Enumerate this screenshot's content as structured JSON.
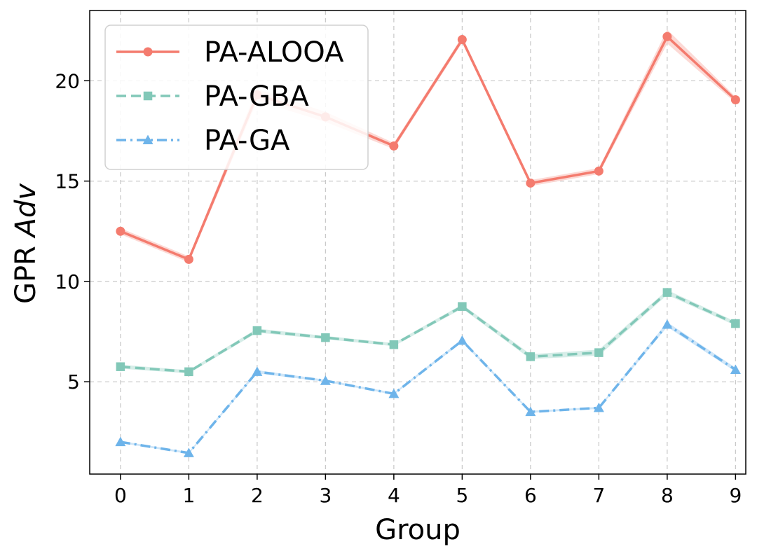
{
  "chart_data": {
    "type": "line",
    "title": "",
    "xlabel": "Group",
    "ylabel_prefix": "GPR ",
    "ylabel_italic": "Adv",
    "x": [
      0,
      1,
      2,
      3,
      4,
      5,
      6,
      7,
      8,
      9
    ],
    "x_tick_labels": [
      "0",
      "1",
      "2",
      "3",
      "4",
      "5",
      "6",
      "7",
      "8",
      "9"
    ],
    "xlim": [
      -0.45,
      9.15
    ],
    "ylim": [
      0.4,
      23.5
    ],
    "y_ticks": [
      5,
      10,
      15,
      20
    ],
    "y_tick_labels": [
      "5",
      "10",
      "15",
      "20"
    ],
    "grid": true,
    "legend_position": "upper-left",
    "series": [
      {
        "name": "PA-ALOOA",
        "color": "#f47b6e",
        "band_color": "#fbd0ca",
        "marker": "circle",
        "linestyle": "solid",
        "values": [
          12.5,
          11.1,
          19.3,
          18.2,
          16.75,
          22.05,
          14.9,
          15.5,
          22.2,
          19.05
        ],
        "band": [
          0.15,
          0.15,
          0.3,
          0.25,
          0.15,
          0.15,
          0.15,
          0.15,
          0.35,
          0.15
        ]
      },
      {
        "name": "PA-GBA",
        "color": "#82c8b8",
        "band_color": "#cce9e2",
        "marker": "square",
        "linestyle": "dashed",
        "values": [
          5.75,
          5.5,
          7.55,
          7.2,
          6.85,
          8.75,
          6.25,
          6.45,
          9.45,
          7.9
        ],
        "band": [
          0.1,
          0.08,
          0.1,
          0.08,
          0.08,
          0.1,
          0.12,
          0.15,
          0.12,
          0.1
        ]
      },
      {
        "name": "PA-GA",
        "color": "#6eb4ea",
        "band_color": "#c3e0f6",
        "marker": "triangle",
        "linestyle": "dashdot",
        "values": [
          2.0,
          1.45,
          5.5,
          5.05,
          4.4,
          7.05,
          3.5,
          3.7,
          7.85,
          5.6
        ],
        "band": [
          0.05,
          0.05,
          0.08,
          0.05,
          0.05,
          0.08,
          0.05,
          0.05,
          0.12,
          0.1
        ]
      }
    ]
  }
}
